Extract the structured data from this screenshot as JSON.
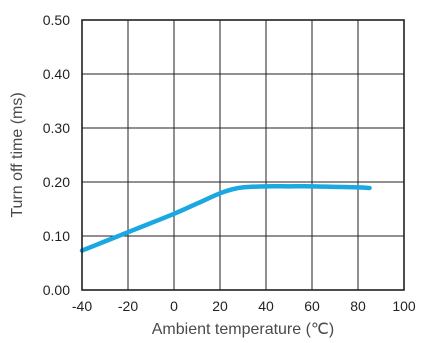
{
  "chart_data": {
    "type": "line",
    "title": "",
    "xlabel": "Ambient temperature (℃)",
    "ylabel": "Turn off time  (ms)",
    "xlim": [
      -40,
      100
    ],
    "ylim": [
      0,
      0.5
    ],
    "x_ticks": [
      -40,
      -20,
      0,
      20,
      40,
      60,
      80,
      100
    ],
    "y_ticks": [
      0,
      0.1,
      0.2,
      0.3,
      0.4,
      0.5
    ],
    "x_tick_labels": [
      "-40",
      "-20",
      "0",
      "20",
      "40",
      "60",
      "80",
      "100"
    ],
    "y_tick_labels": [
      "0.00",
      "0.10",
      "0.20",
      "0.30",
      "0.40",
      "0.50"
    ],
    "grid": true,
    "legend": "none",
    "series": [
      {
        "color": "#1aa7e2",
        "x": [
          -40,
          -30,
          -20,
          -10,
          0,
          10,
          20,
          25,
          30,
          40,
          50,
          60,
          70,
          80,
          85
        ],
        "y": [
          0.073,
          0.09,
          0.107,
          0.124,
          0.141,
          0.16,
          0.179,
          0.186,
          0.19,
          0.192,
          0.192,
          0.192,
          0.191,
          0.19,
          0.189
        ]
      }
    ]
  }
}
